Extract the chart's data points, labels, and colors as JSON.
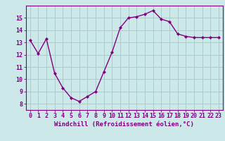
{
  "x": [
    0,
    1,
    2,
    3,
    4,
    5,
    6,
    7,
    8,
    9,
    10,
    11,
    12,
    13,
    14,
    15,
    16,
    17,
    18,
    19,
    20,
    21,
    22,
    23
  ],
  "y": [
    13.2,
    12.1,
    13.3,
    10.5,
    9.3,
    8.5,
    8.2,
    8.6,
    9.0,
    10.6,
    12.2,
    14.2,
    15.0,
    15.1,
    15.3,
    15.6,
    14.9,
    14.7,
    13.7,
    13.5,
    13.4,
    13.4,
    13.4,
    13.4
  ],
  "line_color": "#800080",
  "marker": "D",
  "marker_size": 2.2,
  "bg_color": "#cce8e8",
  "grid_color": "#aacccc",
  "xlabel": "Windchill (Refroidissement éolien,°C)",
  "ylabel": "",
  "xlim": [
    -0.5,
    23.5
  ],
  "ylim": [
    7.5,
    16.0
  ],
  "yticks": [
    8,
    9,
    10,
    11,
    12,
    13,
    14,
    15
  ],
  "xticks": [
    0,
    1,
    2,
    3,
    4,
    5,
    6,
    7,
    8,
    9,
    10,
    11,
    12,
    13,
    14,
    15,
    16,
    17,
    18,
    19,
    20,
    21,
    22,
    23
  ],
  "xtick_labels": [
    "0",
    "1",
    "2",
    "3",
    "4",
    "5",
    "6",
    "7",
    "8",
    "9",
    "10",
    "11",
    "12",
    "13",
    "14",
    "15",
    "16",
    "17",
    "18",
    "19",
    "20",
    "21",
    "22",
    "23"
  ],
  "xlabel_fontsize": 6.5,
  "tick_fontsize": 6.0,
  "line_width": 1.0
}
